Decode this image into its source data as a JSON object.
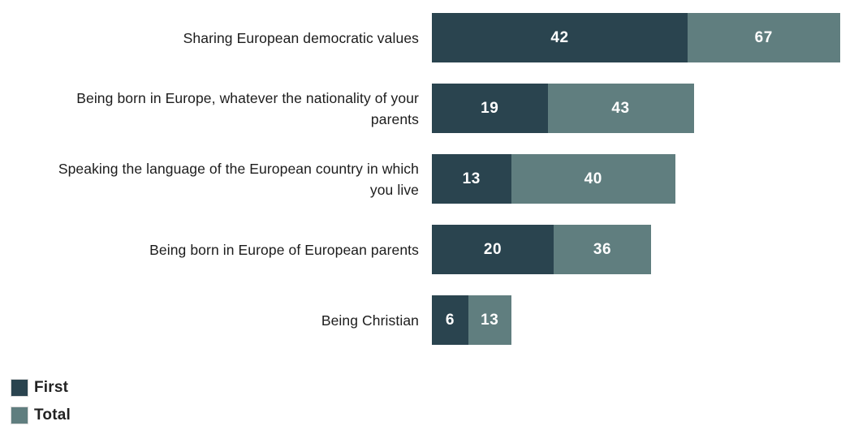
{
  "chart_data": {
    "type": "bar",
    "orientation": "horizontal",
    "title": "",
    "xlabel": "",
    "ylabel": "",
    "axes_shown": false,
    "grid": false,
    "legend_position": "bottom-left",
    "value_labels_shown": true,
    "categories": [
      "Sharing European democratic values",
      "Being born in Europe, whatever the nationality of your parents",
      "Speaking the language of the European country in which you live",
      "Being born in Europe of European parents",
      "Being Christian"
    ],
    "series": [
      {
        "name": "First",
        "color": "#2a444f",
        "values": [
          42,
          19,
          13,
          20,
          6
        ]
      },
      {
        "name": "Total",
        "color": "#607e7f",
        "values": [
          67,
          43,
          40,
          36,
          13
        ]
      }
    ],
    "encoding_note": "Stacked bars: full bar length represents Total value; dark segment represents First value; light segment is labeled with the Total value.",
    "colors": {
      "first_segment": "#2a444f",
      "total_segment": "#607e7f",
      "value_label_text": "#ffffff",
      "category_label_text": "#1c1c1c",
      "background": "#ffffff"
    }
  }
}
